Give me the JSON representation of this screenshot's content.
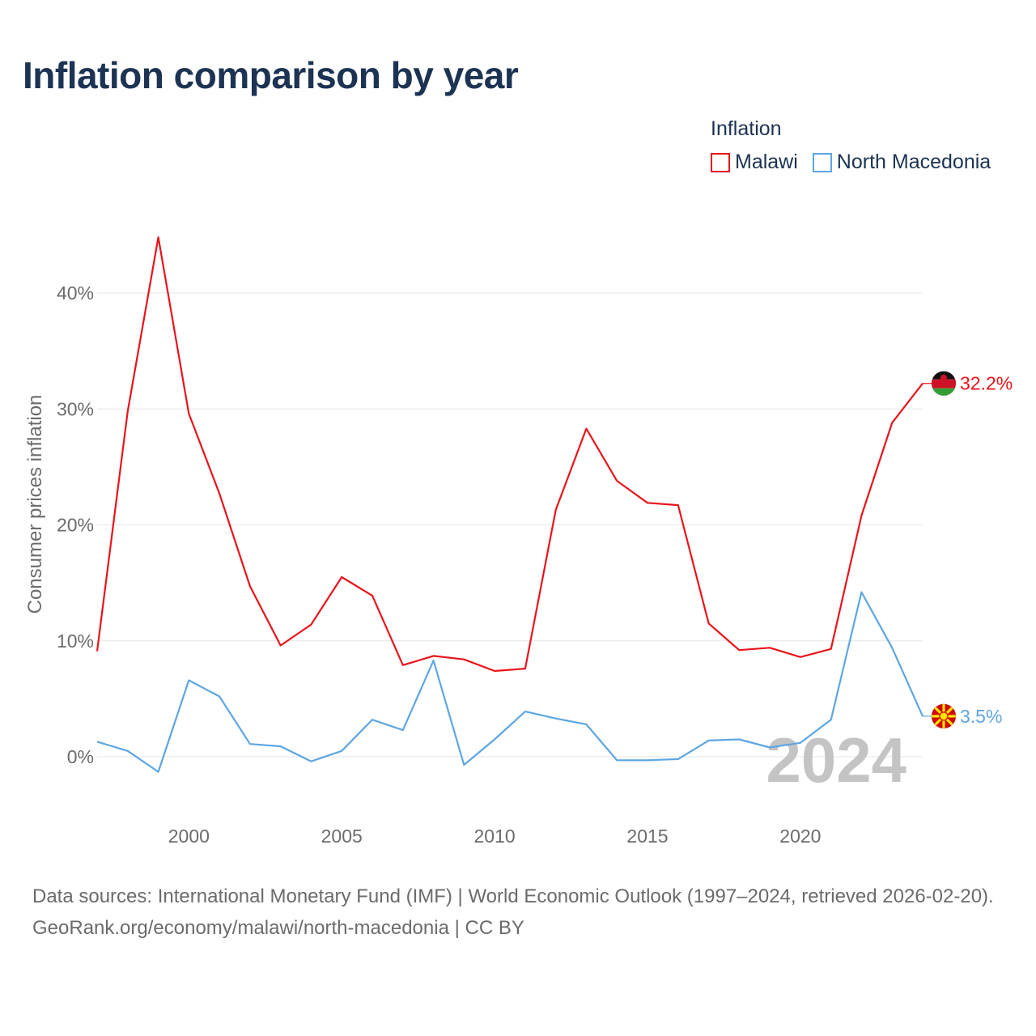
{
  "title": "Inflation comparison by year",
  "legend": {
    "title": "Inflation",
    "items": [
      {
        "label": "Malawi",
        "color": "#e8141b"
      },
      {
        "label": "North Macedonia",
        "color": "#5da6e3"
      }
    ]
  },
  "footer": {
    "sources": "Data sources: International Monetary Fund (IMF) | World Economic Outlook (1997–2024, retrieved 2026-02-20).",
    "credit": "GeoRank.org/economy/malawi/north-macedonia | CC BY"
  },
  "chart_data": {
    "type": "line",
    "title": "Inflation comparison by year",
    "ylabel": "Consumer prices inflation",
    "xlabel": "",
    "year_watermark": "2024",
    "xlim": [
      1997,
      2024
    ],
    "ylim": [
      -5,
      47
    ],
    "x_ticks": [
      2000,
      2005,
      2010,
      2015,
      2020
    ],
    "y_ticks": [
      0,
      10,
      20,
      30,
      40
    ],
    "y_tick_labels": [
      "0%",
      "10%",
      "20%",
      "30%",
      "40%"
    ],
    "grid": true,
    "legend_position": "top-right",
    "x": [
      1997,
      1998,
      1999,
      2000,
      2001,
      2002,
      2003,
      2004,
      2005,
      2006,
      2007,
      2008,
      2009,
      2010,
      2011,
      2012,
      2013,
      2014,
      2015,
      2016,
      2017,
      2018,
      2019,
      2020,
      2021,
      2022,
      2023,
      2024
    ],
    "series": [
      {
        "name": "Malawi",
        "color": "#e8141b",
        "end_label": "32.2%",
        "values": [
          9.1,
          29.8,
          44.8,
          29.6,
          22.7,
          14.7,
          9.6,
          11.4,
          15.5,
          13.9,
          7.9,
          8.7,
          8.4,
          7.4,
          7.6,
          21.3,
          28.3,
          23.8,
          21.9,
          21.7,
          11.5,
          9.2,
          9.4,
          8.6,
          9.3,
          20.8,
          28.8,
          32.2
        ]
      },
      {
        "name": "North Macedonia",
        "color": "#5da6e3",
        "end_label": "3.5%",
        "values": [
          1.3,
          0.5,
          -1.3,
          6.6,
          5.2,
          1.1,
          0.9,
          -0.4,
          0.5,
          3.2,
          2.3,
          8.3,
          -0.7,
          1.5,
          3.9,
          3.3,
          2.8,
          -0.3,
          -0.3,
          -0.2,
          1.4,
          1.5,
          0.8,
          1.2,
          3.2,
          14.2,
          9.4,
          3.5
        ]
      }
    ]
  }
}
